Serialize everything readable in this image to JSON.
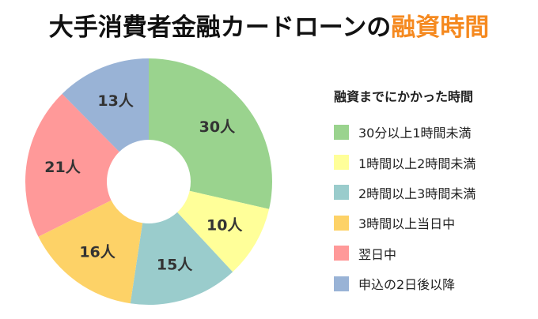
{
  "title": {
    "main": "大手消費者金融カードローンの",
    "highlight": "融資時間",
    "highlight_color": "#F5891F"
  },
  "legend": {
    "title": "融資までにかかった時間"
  },
  "chart_data": {
    "type": "pie",
    "subtype": "donut",
    "title": "大手消費者金融カードローンの融資時間",
    "legend_title": "融資までにかかった時間",
    "legend_position": "right",
    "unit": "人",
    "start_angle": "top, clockwise",
    "categories": [
      "30分以上1時間未満",
      "1時間以上2時間未満",
      "2時間以上3時間未満",
      "3時間以上当日中",
      "翌日中",
      "申込の2日後以降"
    ],
    "values": [
      30,
      10,
      15,
      16,
      21,
      13
    ],
    "labels": [
      "30人",
      "10人",
      "15人",
      "16人",
      "21人",
      "13人"
    ],
    "colors": [
      "#9AD38E",
      "#FFFF99",
      "#9ACCCC",
      "#FDD267",
      "#FF9999",
      "#99B3D6"
    ]
  }
}
